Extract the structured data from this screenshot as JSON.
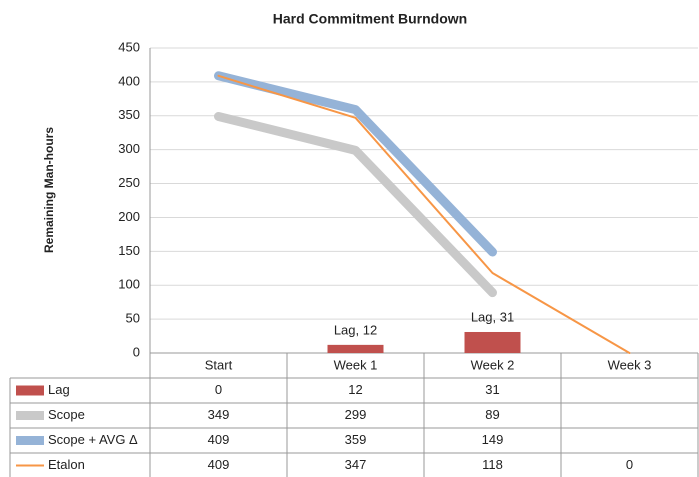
{
  "chart_data": {
    "type": "line",
    "title": "Hard Commitment Burndown",
    "y_label": "Remaining Man-hours",
    "categories": [
      "Start",
      "Week 1",
      "Week 2",
      "Week 3"
    ],
    "series": [
      {
        "name": "Lag",
        "type": "bar",
        "color": "#c0504d",
        "values": [
          0,
          12,
          31,
          null
        ],
        "value_labels": [
          null,
          "Lag, 12",
          "Lag, 31",
          null
        ]
      },
      {
        "name": "Scope",
        "type": "line",
        "color": "#c9c9c9",
        "width": 9,
        "values": [
          349,
          299,
          89,
          null
        ]
      },
      {
        "name": "Scope + AVG Δ",
        "type": "line",
        "color": "#95b3d7",
        "width": 9,
        "values": [
          409,
          359,
          149,
          null
        ]
      },
      {
        "name": "Etalon",
        "type": "line",
        "color": "#f79646",
        "width": 2,
        "values": [
          409,
          347,
          118,
          0
        ]
      }
    ],
    "ylim": [
      0,
      450
    ],
    "yticks": [
      0,
      50,
      100,
      150,
      200,
      250,
      300,
      350,
      400,
      450
    ],
    "grid": true
  }
}
